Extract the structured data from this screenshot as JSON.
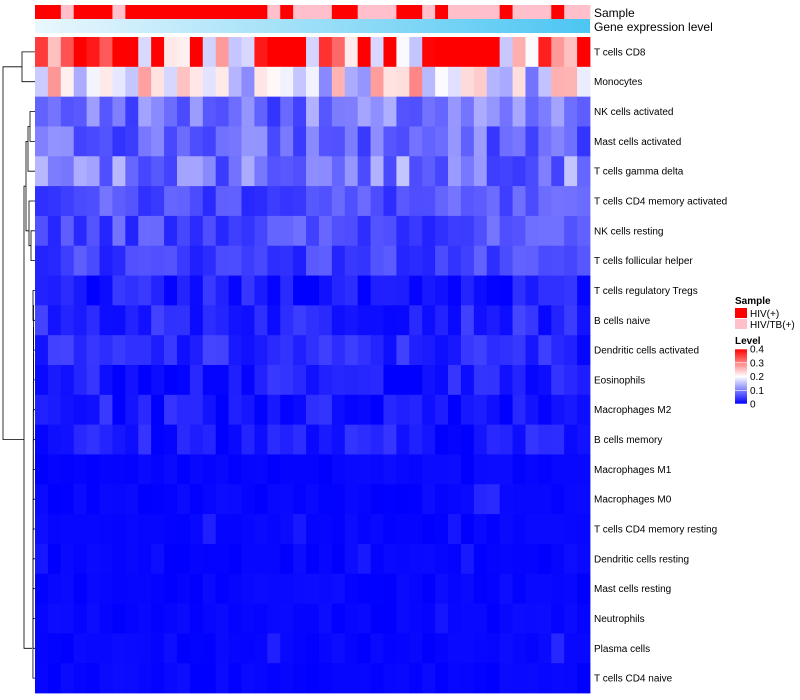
{
  "chart_data": {
    "type": "heatmap",
    "title": "",
    "annotation_tracks": [
      "Sample",
      "Gene expression level"
    ],
    "sample_groups": [
      "HIV(+)",
      "HIV(+)",
      "HIV/TB(+)",
      "HIV(+)",
      "HIV(+)",
      "HIV(+)",
      "HIV/TB(+)",
      "HIV(+)",
      "HIV(+)",
      "HIV(+)",
      "HIV(+)",
      "HIV(+)",
      "HIV(+)",
      "HIV(+)",
      "HIV(+)",
      "HIV(+)",
      "HIV(+)",
      "HIV(+)",
      "HIV/TB(+)",
      "HIV(+)",
      "HIV/TB(+)",
      "HIV/TB(+)",
      "HIV/TB(+)",
      "HIV(+)",
      "HIV(+)",
      "HIV/TB(+)",
      "HIV/TB(+)",
      "HIV/TB(+)",
      "HIV(+)",
      "HIV(+)",
      "HIV/TB(+)",
      "HIV(+)",
      "HIV/TB(+)",
      "HIV/TB(+)",
      "HIV/TB(+)",
      "HIV/TB(+)",
      "HIV(+)",
      "HIV/TB(+)",
      "HIV/TB(+)",
      "HIV/TB(+)",
      "HIV(+)",
      "HIV/TB(+)",
      "HIV/TB(+)"
    ],
    "rows": [
      "T cells CD8",
      "Monocytes",
      "NK cells activated",
      "Mast cells activated",
      "T cells gamma delta",
      "T cells CD4 memory activated",
      "NK cells resting",
      "T cells follicular helper",
      "T cells regulatory  Tregs",
      "B cells naive",
      "Dendritic cells activated",
      "Eosinophils",
      "Macrophages M2",
      "B cells memory",
      "Macrophages M1",
      "Macrophages M0",
      "T cells CD4 memory resting",
      "Dendritic cells resting",
      "Mast cells resting",
      "Neutrophils",
      "Plasma cells",
      "T cells CD4 naive"
    ],
    "base_levels": [
      0.32,
      0.2,
      0.09,
      0.08,
      0.1,
      0.06,
      0.06,
      0.05,
      0.02,
      0.03,
      0.03,
      0.02,
      0.02,
      0.02,
      0.01,
      0.01,
      0.0,
      0.0,
      0.0,
      0.0,
      0.01,
      0.0
    ],
    "value_range": [
      0,
      0.4
    ],
    "colorscale": [
      "#0000ff",
      "#ffffff",
      "#ff0000"
    ],
    "legend_sample": {
      "title": "Sample",
      "entries": [
        {
          "label": "HIV(+)",
          "color": "#ff0000"
        },
        {
          "label": "HIV/TB(+)",
          "color": "#ffc0cb"
        }
      ]
    },
    "legend_level": {
      "title": "Level",
      "ticks": [
        {
          "value": 0.4,
          "label": "0.4"
        },
        {
          "value": 0.3,
          "label": "0.3"
        },
        {
          "value": 0.2,
          "label": "0.2"
        },
        {
          "value": 0.1,
          "label": "0.1"
        },
        {
          "value": 0.0,
          "label": "0"
        }
      ]
    },
    "gene_gradient": [
      "#eaf7fd",
      "#4cc6f2"
    ],
    "dendrogram": "rows",
    "legend_position": "right"
  },
  "colors": {
    "hiv": "#ff0000",
    "hivtb": "#ffc0cb",
    "low": "#0000ff",
    "mid": "#ffffff",
    "high": "#ff0000"
  }
}
